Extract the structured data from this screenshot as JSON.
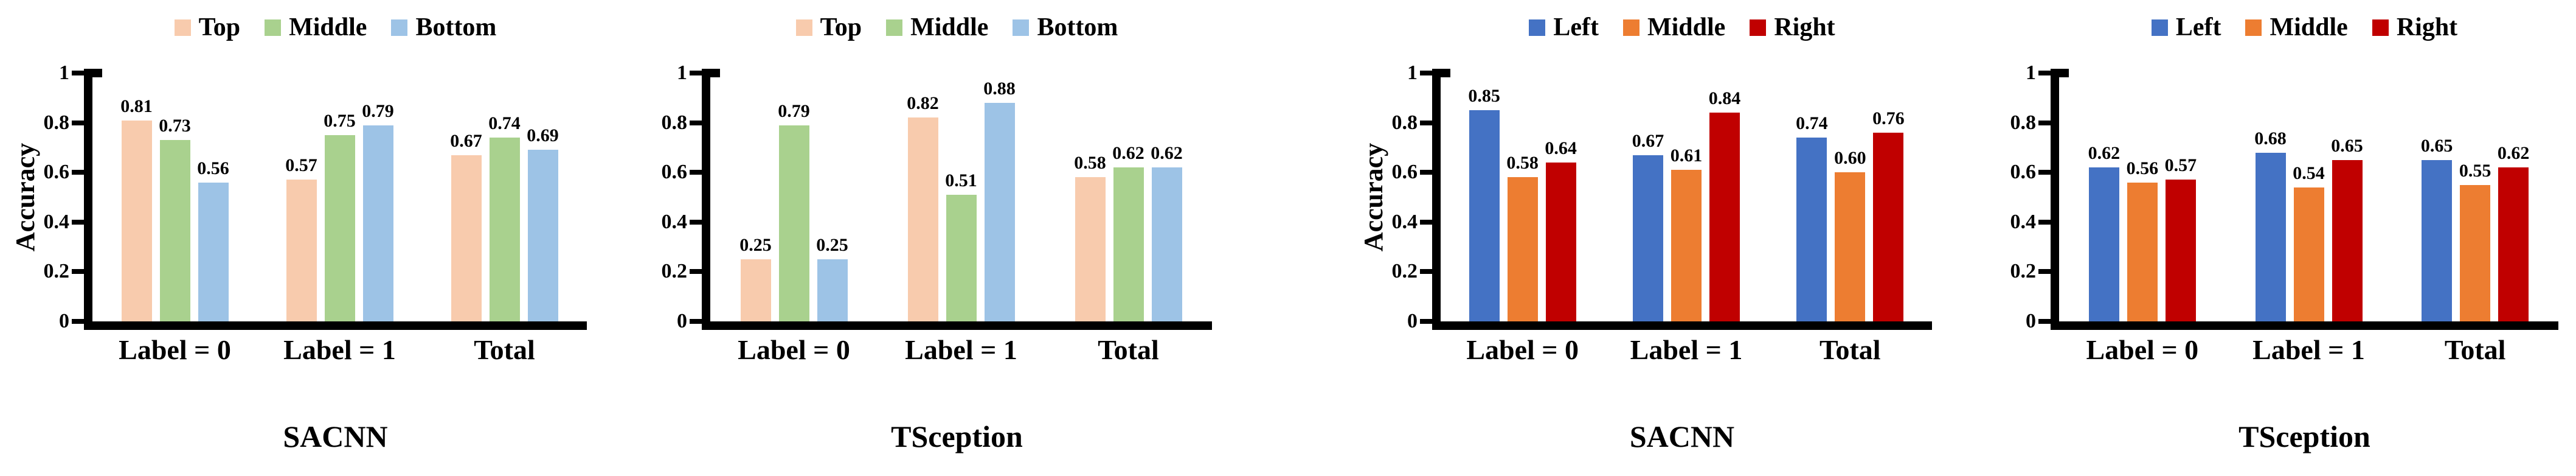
{
  "figure": {
    "background": "#FFFFFF",
    "text_color": "#000000",
    "axis_color": "#000000",
    "panel_count": 4
  },
  "chart_data": [
    {
      "type": "bar",
      "title": "SACNN",
      "ylabel": "Accuracy",
      "xlabel": "",
      "categories": [
        "Label = 0",
        "Label = 1",
        "Total"
      ],
      "ylim": [
        0,
        1
      ],
      "yticks": [
        "0",
        "0.2",
        "0.4",
        "0.6",
        "0.8",
        "1"
      ],
      "grid": false,
      "legend_position": "top",
      "series": [
        {
          "name": "Top",
          "color": "#F8CBAD",
          "values": [
            0.81,
            0.57,
            0.67
          ],
          "labels": [
            "0.81",
            "0.57",
            "0.67"
          ]
        },
        {
          "name": "Middle",
          "color": "#A9D18E",
          "values": [
            0.73,
            0.75,
            0.74
          ],
          "labels": [
            "0.73",
            "0.75",
            "0.74"
          ]
        },
        {
          "name": "Bottom",
          "color": "#9DC3E6",
          "values": [
            0.56,
            0.79,
            0.69
          ],
          "labels": [
            "0.56",
            "0.79",
            "0.69"
          ]
        }
      ]
    },
    {
      "type": "bar",
      "title": "TSception",
      "ylabel": "",
      "xlabel": "",
      "categories": [
        "Label = 0",
        "Label = 1",
        "Total"
      ],
      "ylim": [
        0,
        1
      ],
      "yticks": [
        "0",
        "0.2",
        "0.4",
        "0.6",
        "0.8",
        "1"
      ],
      "grid": false,
      "legend_position": "top",
      "series": [
        {
          "name": "Top",
          "color": "#F8CBAD",
          "values": [
            0.25,
            0.82,
            0.58
          ],
          "labels": [
            "0.25",
            "0.82",
            "0.58"
          ]
        },
        {
          "name": "Middle",
          "color": "#A9D18E",
          "values": [
            0.79,
            0.51,
            0.62
          ],
          "labels": [
            "0.79",
            "0.51",
            "0.62"
          ]
        },
        {
          "name": "Bottom",
          "color": "#9DC3E6",
          "values": [
            0.25,
            0.88,
            0.62
          ],
          "labels": [
            "0.25",
            "0.88",
            "0.62"
          ]
        }
      ]
    },
    {
      "type": "bar",
      "title": "SACNN",
      "ylabel": "Accuracy",
      "xlabel": "",
      "categories": [
        "Label = 0",
        "Label = 1",
        "Total"
      ],
      "ylim": [
        0,
        1
      ],
      "yticks": [
        "0",
        "0.2",
        "0.4",
        "0.6",
        "0.8",
        "1"
      ],
      "grid": false,
      "legend_position": "top",
      "series": [
        {
          "name": "Left",
          "color": "#4472C4",
          "values": [
            0.85,
            0.67,
            0.74
          ],
          "labels": [
            "0.85",
            "0.67",
            "0.74"
          ]
        },
        {
          "name": "Middle",
          "color": "#ED7D31",
          "values": [
            0.58,
            0.61,
            0.6
          ],
          "labels": [
            "0.58",
            "0.61",
            "0.60"
          ]
        },
        {
          "name": "Right",
          "color": "#C00000",
          "values": [
            0.64,
            0.84,
            0.76
          ],
          "labels": [
            "0.64",
            "0.84",
            "0.76"
          ]
        }
      ]
    },
    {
      "type": "bar",
      "title": "TSception",
      "ylabel": "",
      "xlabel": "",
      "categories": [
        "Label = 0",
        "Label = 1",
        "Total"
      ],
      "ylim": [
        0,
        1
      ],
      "yticks": [
        "0",
        "0.2",
        "0.4",
        "0.6",
        "0.8",
        "1"
      ],
      "grid": false,
      "legend_position": "top",
      "series": [
        {
          "name": "Left",
          "color": "#4472C4",
          "values": [
            0.62,
            0.68,
            0.65
          ],
          "labels": [
            "0.62",
            "0.68",
            "0.65"
          ]
        },
        {
          "name": "Middle",
          "color": "#ED7D31",
          "values": [
            0.56,
            0.54,
            0.55
          ],
          "labels": [
            "0.56",
            "0.54",
            "0.55"
          ]
        },
        {
          "name": "Right",
          "color": "#C00000",
          "values": [
            0.57,
            0.65,
            0.62
          ],
          "labels": [
            "0.57",
            "0.65",
            "0.62"
          ]
        }
      ]
    }
  ]
}
